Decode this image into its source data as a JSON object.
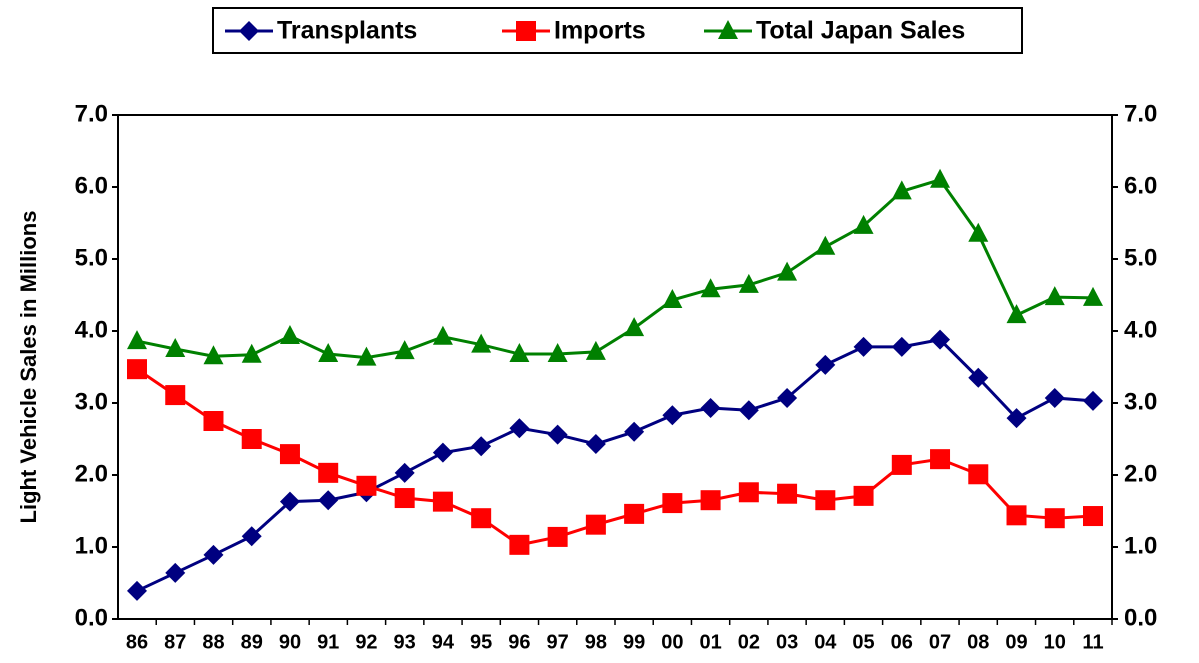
{
  "chart_data": {
    "type": "line",
    "y_label": "Light Vehicle Sales in Millions",
    "categories": [
      "86",
      "87",
      "88",
      "89",
      "90",
      "91",
      "92",
      "93",
      "94",
      "95",
      "96",
      "97",
      "98",
      "99",
      "00",
      "01",
      "02",
      "03",
      "04",
      "05",
      "06",
      "07",
      "08",
      "09",
      "10",
      "11"
    ],
    "series": [
      {
        "name": "Transplants",
        "color": "#000080",
        "marker": "diamond",
        "values": [
          0.39,
          0.64,
          0.89,
          1.15,
          1.63,
          1.65,
          1.76,
          2.03,
          2.31,
          2.4,
          2.65,
          2.56,
          2.43,
          2.6,
          2.83,
          2.93,
          2.9,
          3.07,
          3.53,
          3.78,
          3.78,
          3.88,
          3.35,
          2.79,
          3.07,
          3.03
        ]
      },
      {
        "name": "Imports",
        "color": "#ff0000",
        "marker": "square",
        "values": [
          3.47,
          3.11,
          2.75,
          2.5,
          2.29,
          2.03,
          1.85,
          1.68,
          1.63,
          1.4,
          1.03,
          1.14,
          1.31,
          1.46,
          1.61,
          1.65,
          1.76,
          1.74,
          1.65,
          1.71,
          2.14,
          2.22,
          2.01,
          1.44,
          1.4,
          1.43
        ]
      },
      {
        "name": "Total Japan Sales",
        "color": "#008000",
        "marker": "triangle",
        "values": [
          3.86,
          3.75,
          3.65,
          3.67,
          3.93,
          3.68,
          3.63,
          3.72,
          3.92,
          3.81,
          3.68,
          3.68,
          3.71,
          4.04,
          4.43,
          4.58,
          4.64,
          4.81,
          5.17,
          5.46,
          5.94,
          6.1,
          5.35,
          4.22,
          4.47,
          4.46
        ]
      }
    ],
    "ylim": [
      0,
      7
    ],
    "yticks": [
      {
        "value": 0,
        "label": "0.0"
      },
      {
        "value": 1,
        "label": "1.0"
      },
      {
        "value": 2,
        "label": "2.0"
      },
      {
        "value": 3,
        "label": "3.0"
      },
      {
        "value": 4,
        "label": "4.0"
      },
      {
        "value": 5,
        "label": "5.0"
      },
      {
        "value": 6,
        "label": "6.0"
      },
      {
        "value": 7,
        "label": "7.0"
      }
    ],
    "y2lim": [
      0,
      7
    ],
    "y2ticks": [
      {
        "value": 0,
        "label": "0.0"
      },
      {
        "value": 1,
        "label": "1.0"
      },
      {
        "value": 2,
        "label": "2.0"
      },
      {
        "value": 3,
        "label": "3.0"
      },
      {
        "value": 4,
        "label": "4.0"
      },
      {
        "value": 5,
        "label": "5.0"
      },
      {
        "value": 6,
        "label": "6.0"
      },
      {
        "value": 7,
        "label": "7.0"
      }
    ],
    "grid": false,
    "legend": "top"
  }
}
